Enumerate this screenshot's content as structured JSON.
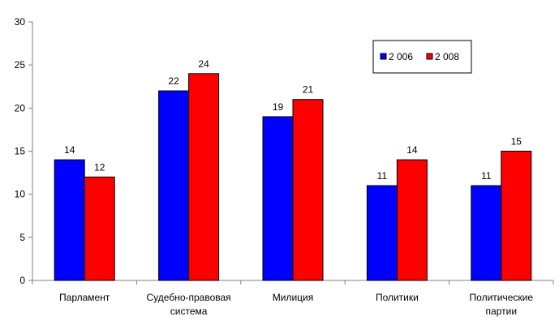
{
  "chart_data": {
    "type": "bar",
    "title": "",
    "xlabel": "",
    "ylabel": "",
    "categories": [
      [
        "Парламент"
      ],
      [
        "Судебно-правовая",
        "система"
      ],
      [
        "Милиция"
      ],
      [
        "Политики"
      ],
      [
        "Политические",
        "партии"
      ]
    ],
    "series": [
      {
        "name": "2 006",
        "color": "#0000FF",
        "values": [
          14,
          22,
          19,
          11,
          11
        ]
      },
      {
        "name": "2 008",
        "color": "#FF0000",
        "values": [
          12,
          24,
          21,
          14,
          15
        ]
      }
    ],
    "ylim": [
      0,
      30
    ],
    "yticks": [
      0,
      5,
      10,
      15,
      20,
      25,
      30
    ],
    "grid": false,
    "legend_position": "top-right",
    "data_labels": true
  }
}
